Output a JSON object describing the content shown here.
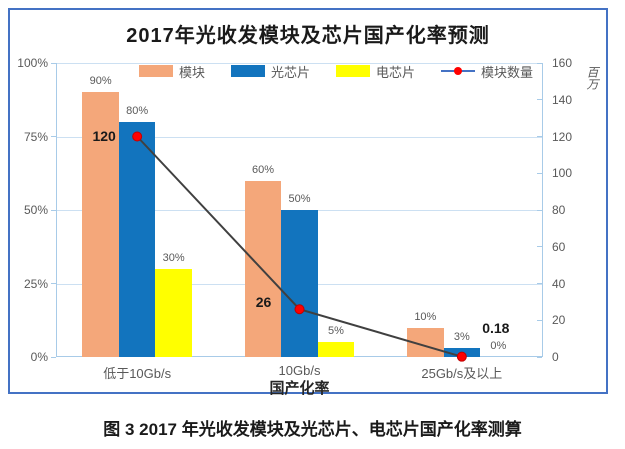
{
  "figure": {
    "title": "2017年光收发模块及芯片国产化率预测",
    "caption": "图 3 2017 年光收发模块及光芯片、电芯片国产化率测算"
  },
  "colors": {
    "border": "#4472C4",
    "grid": "#CCE0F2",
    "axis": "#A8CBE8",
    "tick_label": "#595959",
    "bar_module": "#F4A77A",
    "bar_optical": "#1274BE",
    "bar_electrical": "#FFFF00",
    "line": "#404040",
    "marker": "#FF0000",
    "marker_edge": "#C00000",
    "legend_line": "#4472C4"
  },
  "chart_data": {
    "type": "bar",
    "title": "2017年光收发模块及芯片国产化率预测",
    "categories": [
      "低于10Gb/s",
      "10Gb/s",
      "25Gb/s及以上"
    ],
    "series": [
      {
        "name": "模块",
        "type": "bar",
        "axis": "left",
        "color_key": "bar_module",
        "values": [
          90,
          60,
          10
        ],
        "labels": [
          "90%",
          "60%",
          "10%"
        ]
      },
      {
        "name": "光芯片",
        "type": "bar",
        "axis": "left",
        "color_key": "bar_optical",
        "values": [
          80,
          50,
          3
        ],
        "labels": [
          "80%",
          "50%",
          "3%"
        ]
      },
      {
        "name": "电芯片",
        "type": "bar",
        "axis": "left",
        "color_key": "bar_electrical",
        "values": [
          30,
          5,
          0
        ],
        "labels": [
          "30%",
          "5%",
          "0%"
        ]
      },
      {
        "name": "模块数量",
        "type": "line",
        "axis": "right",
        "color_key": "line",
        "values": [
          120,
          26,
          0.18
        ],
        "labels": [
          "120",
          "26",
          "0.18"
        ]
      }
    ],
    "left_axis": {
      "min": 0,
      "max": 100,
      "ticks": [
        "0%",
        "25%",
        "50%",
        "75%",
        "100%"
      ]
    },
    "right_axis": {
      "min": 0,
      "max": 160,
      "ticks": [
        "0",
        "20",
        "40",
        "60",
        "80",
        "100",
        "120",
        "140",
        "160"
      ],
      "unit_label": "百万"
    },
    "xlabel": "国产化率",
    "legend_position": "top",
    "grid": true
  }
}
